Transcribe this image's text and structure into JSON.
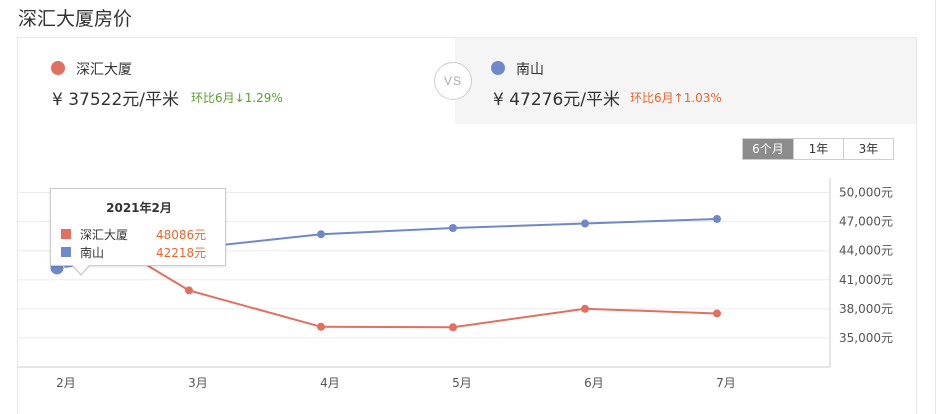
{
  "page": {
    "title": "深汇大厦房价"
  },
  "compare": {
    "left": {
      "name": "深汇大厦",
      "price_text": "¥ 37522元/平米",
      "mom_text": "环比6月↓1.29%",
      "dot_color": "#e07060",
      "mom_color": "#5aa02c"
    },
    "vs_label": "VS",
    "right": {
      "name": "南山",
      "price_text": "¥ 47276元/平米",
      "mom_text": "环比6月↑1.03%",
      "dot_color": "#6e89c9",
      "mom_color": "#e9662c"
    }
  },
  "range_tabs": [
    {
      "label": "6个月",
      "active": true
    },
    {
      "label": "1年",
      "active": false
    },
    {
      "label": "3年",
      "active": false
    }
  ],
  "tooltip": {
    "title": "2021年2月",
    "rows": [
      {
        "name": "深汇大厦",
        "value": "48086元",
        "color": "#e07060"
      },
      {
        "name": "南山",
        "value": "42218元",
        "color": "#6e89c9"
      }
    ]
  },
  "chart_data": {
    "type": "line",
    "categories": [
      "2月",
      "3月",
      "4月",
      "5月",
      "6月",
      "7月"
    ],
    "y_ticks": [
      35000,
      38000,
      41000,
      44000,
      47000,
      50000
    ],
    "y_tick_labels": [
      "35,000元",
      "38,000元",
      "41,000元",
      "44,000元",
      "47,000元",
      "50,000元"
    ],
    "ylim": [
      32000,
      51500
    ],
    "grid": true,
    "series": [
      {
        "name": "深汇大厦",
        "color": "#e07060",
        "values": [
          48086,
          39900,
          36150,
          36100,
          38010,
          37522
        ]
      },
      {
        "name": "南山",
        "color": "#6e89c9",
        "values": [
          42218,
          44220,
          45700,
          46340,
          46800,
          47276
        ]
      }
    ]
  }
}
